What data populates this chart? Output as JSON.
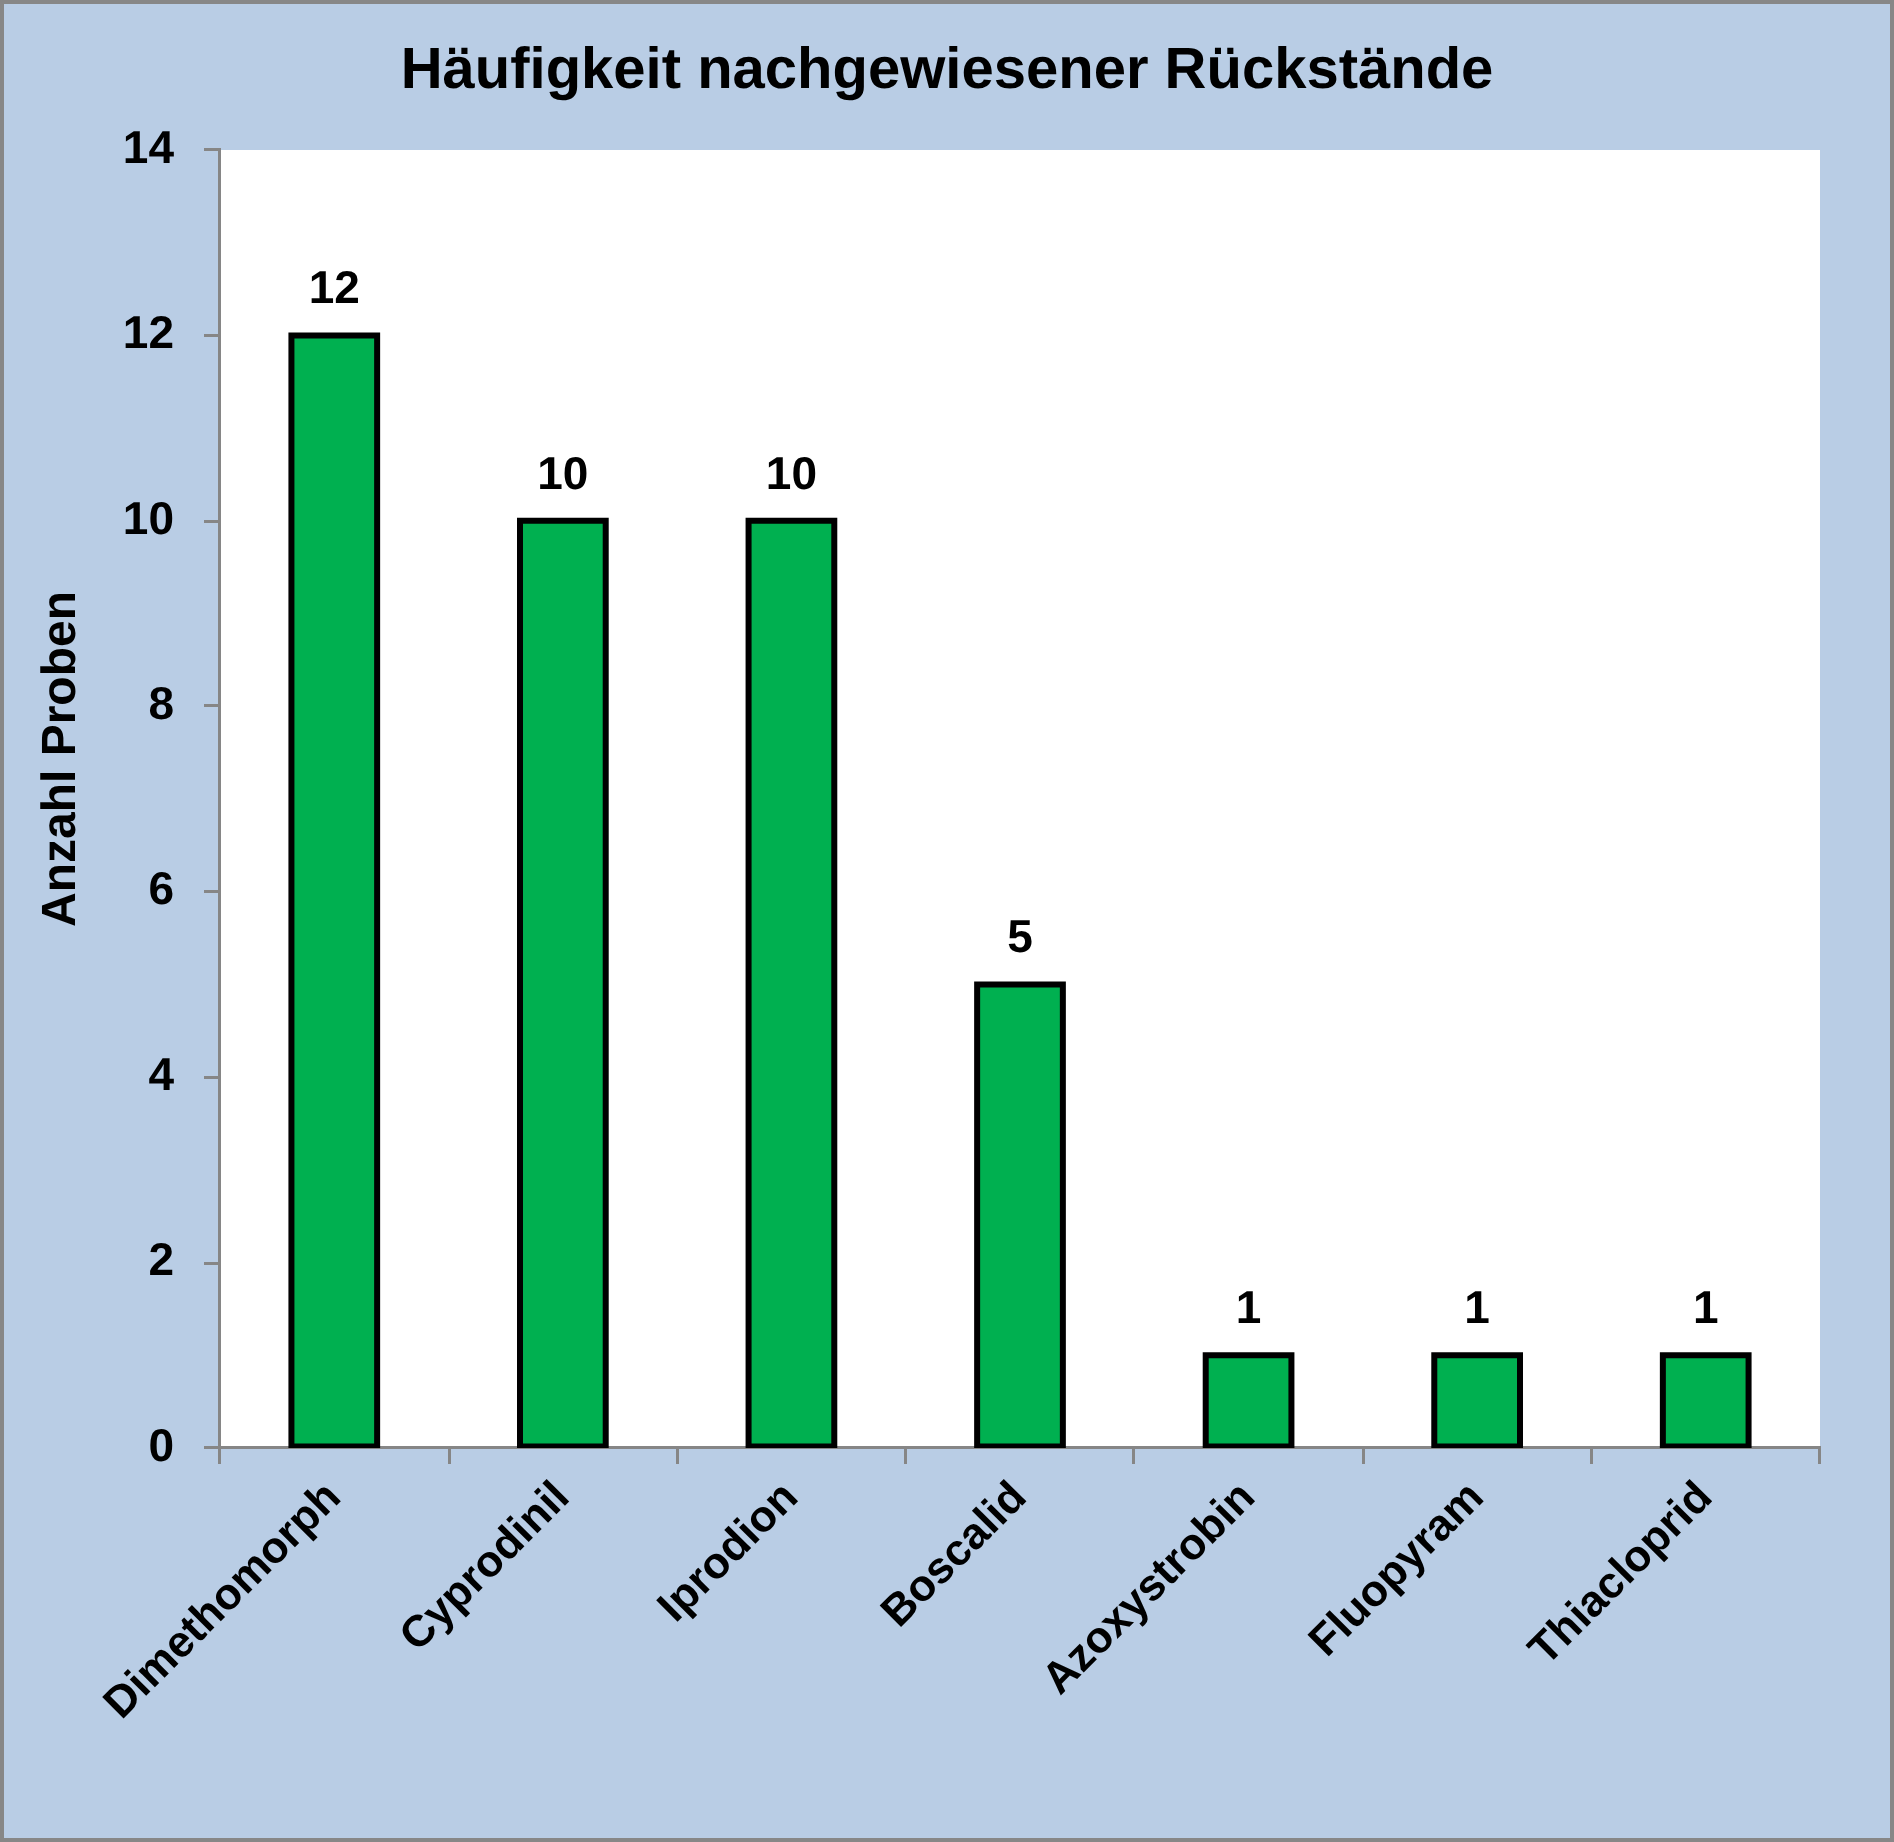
{
  "chart_data": {
    "type": "bar",
    "title": "Häufigkeit nachgewiesener Rückstände",
    "ylabel": "Anzahl Proben",
    "categories": [
      "Dimethomorph",
      "Cyprodinil",
      "Iprodion",
      "Boscalid",
      "Azoxystrobin",
      "Fluopyram",
      "Thiacloprid"
    ],
    "values": [
      12,
      10,
      10,
      5,
      1,
      1,
      1
    ],
    "color": "#00b050",
    "ylim": [
      0,
      14
    ],
    "yticks": [
      0,
      2,
      4,
      6,
      8,
      10,
      12,
      14
    ],
    "data_labels": true
  }
}
